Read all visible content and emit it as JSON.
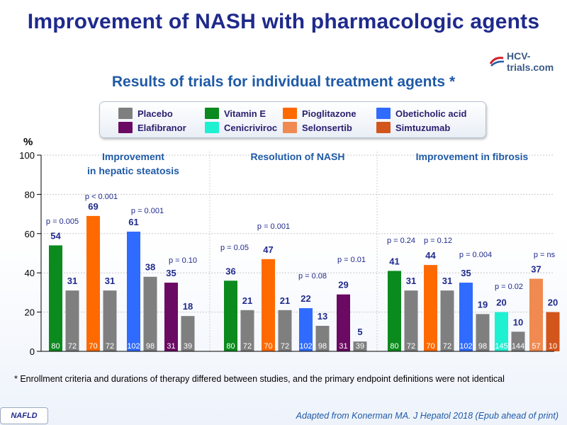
{
  "slide": {
    "title": "Improvement of NASH with pharmacologic agents",
    "subtitle": "Results of trials for individual treatment agents *",
    "logo_text": "HCV-trials.com",
    "footnote": "* Enrollment criteria and durations of therapy differed between studies, and the primary endpoint definitions were not identical",
    "source": "Adapted from Konerman MA. J Hepatol 2018 (Epub ahead of print)",
    "badge": "NAFLD"
  },
  "legend": [
    {
      "label": "Placebo",
      "color": "#7f7f7f"
    },
    {
      "label": "Vitamin E",
      "color": "#0b8a1e"
    },
    {
      "label": "Pioglitazone",
      "color": "#ff6a00"
    },
    {
      "label": "Obeticholic acid",
      "color": "#2f6bff"
    },
    {
      "label": "Elafibranor",
      "color": "#6b0a63"
    },
    {
      "label": "Cenicriviroc",
      "color": "#1ef0d2"
    },
    {
      "label": "Selonsertib",
      "color": "#f08a50"
    },
    {
      "label": "Simtuzumab",
      "color": "#d2561c"
    }
  ],
  "chart_data": {
    "type": "bar",
    "ylabel": "%",
    "ylim": [
      0,
      100
    ],
    "yticks": [
      0,
      20,
      40,
      60,
      80,
      100
    ],
    "panels": [
      {
        "title": [
          "Improvement",
          "in hepatic steatosis"
        ],
        "bars": [
          {
            "agent": "Vitamin E",
            "value": 54,
            "n": "80"
          },
          {
            "agent": "Placebo",
            "value": 31,
            "n": "72"
          },
          {
            "agent": "Pioglitazone",
            "value": 69,
            "n": "70"
          },
          {
            "agent": "Placebo",
            "value": 31,
            "n": "72"
          },
          {
            "agent": "Obeticholic acid",
            "value": 61,
            "n": "102"
          },
          {
            "agent": "Placebo",
            "value": 38,
            "n": "98"
          },
          {
            "agent": "Elafibranor",
            "value": 35,
            "n": "31"
          },
          {
            "agent": "Placebo",
            "value": 18,
            "n": "39"
          }
        ],
        "pvalues": [
          "p = 0.005",
          "p < 0.001",
          "p = 0.001",
          "p = 0.10"
        ]
      },
      {
        "title": [
          "Resolution of NASH"
        ],
        "bars": [
          {
            "agent": "Vitamin E",
            "value": 36,
            "n": "80"
          },
          {
            "agent": "Placebo",
            "value": 21,
            "n": "72"
          },
          {
            "agent": "Pioglitazone",
            "value": 47,
            "n": "70"
          },
          {
            "agent": "Placebo",
            "value": 21,
            "n": "72"
          },
          {
            "agent": "Obeticholic acid",
            "value": 22,
            "n": "102"
          },
          {
            "agent": "Placebo",
            "value": 13,
            "n": "98"
          },
          {
            "agent": "Elafibranor",
            "value": 29,
            "n": "31"
          },
          {
            "agent": "Placebo",
            "value": 5,
            "n": "39"
          }
        ],
        "pvalues": [
          "p = 0.05",
          "p = 0.001",
          "p = 0.08",
          "p = 0.01"
        ]
      },
      {
        "title": [
          "Improvement in fibrosis"
        ],
        "bars": [
          {
            "agent": "Vitamin E",
            "value": 41,
            "n": "80"
          },
          {
            "agent": "Placebo",
            "value": 31,
            "n": "72"
          },
          {
            "agent": "Pioglitazone",
            "value": 44,
            "n": "70"
          },
          {
            "agent": "Placebo",
            "value": 31,
            "n": "72"
          },
          {
            "agent": "Obeticholic acid",
            "value": 35,
            "n": "102"
          },
          {
            "agent": "Placebo",
            "value": 19,
            "n": "98"
          },
          {
            "agent": "Cenicriviroc",
            "value": 20,
            "n": "145"
          },
          {
            "agent": "Placebo",
            "value": 10,
            "n": "144"
          },
          {
            "agent": "Selonsertib",
            "value": 37,
            "n": "57"
          },
          {
            "agent": "Simtuzumab",
            "value": 20,
            "n": "10"
          }
        ],
        "pvalues": [
          "p = 0.24",
          "p = 0.12",
          "p = 0.004",
          "p = 0.02",
          "p = ns"
        ]
      }
    ]
  }
}
